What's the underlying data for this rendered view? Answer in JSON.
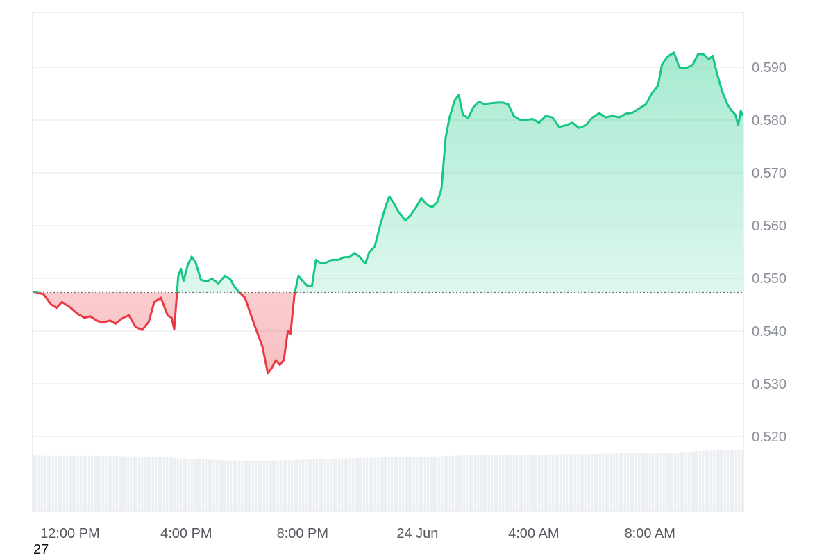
{
  "chart_data": {
    "type": "area",
    "x_ticks": [
      "12:00 PM",
      "4:00 PM",
      "8:00 PM",
      "24 Jun",
      "4:00 AM",
      "8:00 AM"
    ],
    "y_ticks": [
      "0.590",
      "0.580",
      "0.570",
      "0.560",
      "0.550",
      "0.540",
      "0.530",
      "0.520"
    ],
    "ylim": [
      0.51,
      0.6
    ],
    "baseline": 0.5473,
    "xlim_hours": [
      -3.0,
      23.6
    ],
    "x_hours_of_ticks": [
      -1.6,
      2.75,
      7.1,
      11.4,
      15.75,
      20.1
    ],
    "grid": true,
    "colors": {
      "up": "#16c784",
      "down": "#ea3943"
    },
    "series": [
      {
        "values": [
          [
            -3.0,
            0.5475
          ],
          [
            -2.6,
            0.547
          ],
          [
            -2.3,
            0.545
          ],
          [
            -2.1,
            0.5444
          ],
          [
            -1.9,
            0.5455
          ],
          [
            -1.6,
            0.5445
          ],
          [
            -1.3,
            0.5432
          ],
          [
            -1.05,
            0.5425
          ],
          [
            -0.85,
            0.5428
          ],
          [
            -0.6,
            0.542
          ],
          [
            -0.4,
            0.5416
          ],
          [
            -0.1,
            0.542
          ],
          [
            0.1,
            0.5414
          ],
          [
            0.35,
            0.5424
          ],
          [
            0.6,
            0.543
          ],
          [
            0.85,
            0.5408
          ],
          [
            1.1,
            0.5402
          ],
          [
            1.35,
            0.5418
          ],
          [
            1.55,
            0.5455
          ],
          [
            1.8,
            0.5463
          ],
          [
            2.05,
            0.543
          ],
          [
            2.2,
            0.5425
          ],
          [
            2.3,
            0.5403
          ],
          [
            2.45,
            0.5505
          ],
          [
            2.55,
            0.5518
          ],
          [
            2.65,
            0.5495
          ],
          [
            2.8,
            0.5525
          ],
          [
            2.95,
            0.5541
          ],
          [
            3.1,
            0.553
          ],
          [
            3.3,
            0.5497
          ],
          [
            3.55,
            0.5494
          ],
          [
            3.7,
            0.55
          ],
          [
            3.95,
            0.549
          ],
          [
            4.2,
            0.5505
          ],
          [
            4.4,
            0.5498
          ],
          [
            4.55,
            0.5484
          ],
          [
            4.75,
            0.5473
          ],
          [
            4.95,
            0.5463
          ],
          [
            5.15,
            0.5433
          ],
          [
            5.35,
            0.5405
          ],
          [
            5.6,
            0.537
          ],
          [
            5.8,
            0.532
          ],
          [
            5.95,
            0.533
          ],
          [
            6.1,
            0.5345
          ],
          [
            6.25,
            0.5336
          ],
          [
            6.4,
            0.5345
          ],
          [
            6.55,
            0.54
          ],
          [
            6.65,
            0.5395
          ],
          [
            6.8,
            0.547
          ],
          [
            6.95,
            0.5505
          ],
          [
            7.1,
            0.5495
          ],
          [
            7.3,
            0.5485
          ],
          [
            7.45,
            0.5485
          ],
          [
            7.6,
            0.5535
          ],
          [
            7.8,
            0.5528
          ],
          [
            8.0,
            0.553
          ],
          [
            8.2,
            0.5535
          ],
          [
            8.45,
            0.5535
          ],
          [
            8.65,
            0.554
          ],
          [
            8.85,
            0.554
          ],
          [
            9.05,
            0.5548
          ],
          [
            9.25,
            0.554
          ],
          [
            9.45,
            0.5528
          ],
          [
            9.6,
            0.555
          ],
          [
            9.8,
            0.556
          ],
          [
            10.0,
            0.56
          ],
          [
            10.2,
            0.5635
          ],
          [
            10.35,
            0.5655
          ],
          [
            10.55,
            0.564
          ],
          [
            10.7,
            0.5625
          ],
          [
            10.95,
            0.561
          ],
          [
            11.15,
            0.562
          ],
          [
            11.35,
            0.5635
          ],
          [
            11.55,
            0.5652
          ],
          [
            11.75,
            0.564
          ],
          [
            11.95,
            0.5635
          ],
          [
            12.15,
            0.5645
          ],
          [
            12.3,
            0.567
          ],
          [
            12.45,
            0.5765
          ],
          [
            12.6,
            0.5805
          ],
          [
            12.8,
            0.5838
          ],
          [
            12.95,
            0.5848
          ],
          [
            13.1,
            0.581
          ],
          [
            13.3,
            0.5804
          ],
          [
            13.5,
            0.5825
          ],
          [
            13.7,
            0.5835
          ],
          [
            13.9,
            0.583
          ],
          [
            14.15,
            0.5832
          ],
          [
            14.4,
            0.5833
          ],
          [
            14.6,
            0.5833
          ],
          [
            14.8,
            0.583
          ],
          [
            15.0,
            0.5808
          ],
          [
            15.25,
            0.58
          ],
          [
            15.45,
            0.58
          ],
          [
            15.7,
            0.5802
          ],
          [
            15.95,
            0.5795
          ],
          [
            16.2,
            0.5808
          ],
          [
            16.45,
            0.5805
          ],
          [
            16.7,
            0.5787
          ],
          [
            16.95,
            0.579
          ],
          [
            17.2,
            0.5795
          ],
          [
            17.45,
            0.5785
          ],
          [
            17.7,
            0.579
          ],
          [
            17.95,
            0.5805
          ],
          [
            18.2,
            0.5813
          ],
          [
            18.45,
            0.5805
          ],
          [
            18.7,
            0.5808
          ],
          [
            18.95,
            0.5805
          ],
          [
            19.2,
            0.5812
          ],
          [
            19.45,
            0.5814
          ],
          [
            19.7,
            0.5822
          ],
          [
            19.95,
            0.583
          ],
          [
            20.2,
            0.5853
          ],
          [
            20.4,
            0.5865
          ],
          [
            20.55,
            0.5905
          ],
          [
            20.75,
            0.592
          ],
          [
            21.0,
            0.5928
          ],
          [
            21.2,
            0.59
          ],
          [
            21.45,
            0.5898
          ],
          [
            21.7,
            0.5905
          ],
          [
            21.9,
            0.5925
          ],
          [
            22.1,
            0.5925
          ],
          [
            22.3,
            0.5915
          ],
          [
            22.45,
            0.5922
          ],
          [
            22.6,
            0.589
          ],
          [
            22.8,
            0.5855
          ],
          [
            23.0,
            0.583
          ],
          [
            23.15,
            0.5818
          ],
          [
            23.3,
            0.581
          ],
          [
            23.4,
            0.579
          ],
          [
            23.5,
            0.5818
          ],
          [
            23.55,
            0.581
          ],
          [
            23.6,
            0.581
          ]
        ]
      }
    ],
    "volume": [
      [
        -3.0,
        0.0173
      ],
      [
        -2.0,
        0.0172
      ],
      [
        -1.0,
        0.0172
      ],
      [
        0.0,
        0.0171
      ],
      [
        1.0,
        0.017
      ],
      [
        1.8,
        0.017
      ],
      [
        2.5,
        0.0164
      ],
      [
        3.3,
        0.0162
      ],
      [
        4.0,
        0.0158
      ],
      [
        5.0,
        0.0157
      ],
      [
        6.0,
        0.0157
      ],
      [
        7.0,
        0.016
      ],
      [
        8.0,
        0.0162
      ],
      [
        9.0,
        0.0165
      ],
      [
        10.0,
        0.0167
      ],
      [
        11.0,
        0.0168
      ],
      [
        12.0,
        0.017
      ],
      [
        13.0,
        0.0173
      ],
      [
        14.0,
        0.0175
      ],
      [
        15.0,
        0.0175
      ],
      [
        16.0,
        0.0176
      ],
      [
        17.0,
        0.0177
      ],
      [
        18.0,
        0.0178
      ],
      [
        19.0,
        0.018
      ],
      [
        20.0,
        0.018
      ],
      [
        21.0,
        0.0182
      ],
      [
        22.0,
        0.0187
      ],
      [
        23.0,
        0.019
      ],
      [
        23.6,
        0.019
      ]
    ]
  },
  "footer_number": "27"
}
